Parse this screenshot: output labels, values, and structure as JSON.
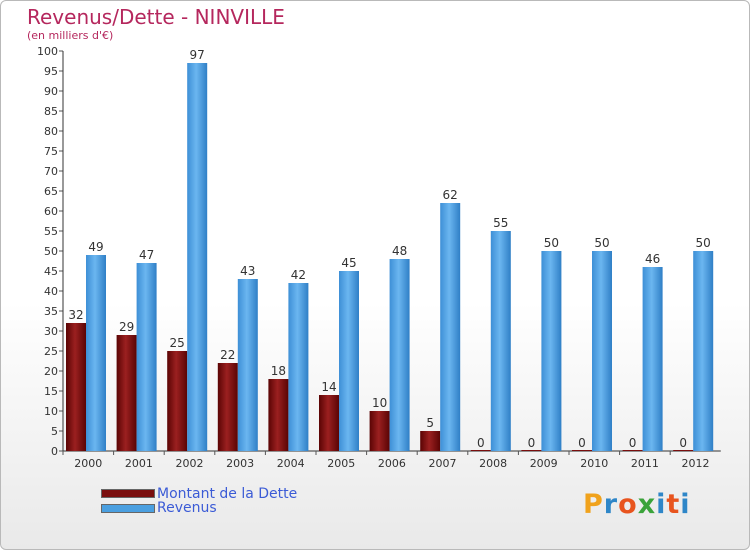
{
  "chart_data": {
    "type": "bar",
    "title": "Revenus/Dette - NINVILLE",
    "subtitle": "(en milliers d'€)",
    "categories": [
      "2000",
      "2001",
      "2002",
      "2003",
      "2004",
      "2005",
      "2006",
      "2007",
      "2008",
      "2009",
      "2010",
      "2011",
      "2012"
    ],
    "series": [
      {
        "name": "Montant de la Dette",
        "color": "#7a0e0e",
        "values": [
          32,
          29,
          25,
          22,
          18,
          14,
          10,
          5,
          0,
          0,
          0,
          0,
          0
        ]
      },
      {
        "name": "Revenus",
        "color": "#4a9fe0",
        "values": [
          49,
          47,
          97,
          43,
          42,
          45,
          48,
          62,
          55,
          50,
          50,
          46,
          50
        ]
      }
    ],
    "ylim": [
      0,
      100
    ],
    "ytick_step": 5,
    "grid": false,
    "legend_position": "bottom-left"
  },
  "logo": {
    "text": "Proxiti",
    "colors": [
      "#f0a21c",
      "#2e86c8",
      "#e8541e",
      "#3aa33a",
      "#2e86c8",
      "#e8541e",
      "#2e86c8"
    ]
  }
}
